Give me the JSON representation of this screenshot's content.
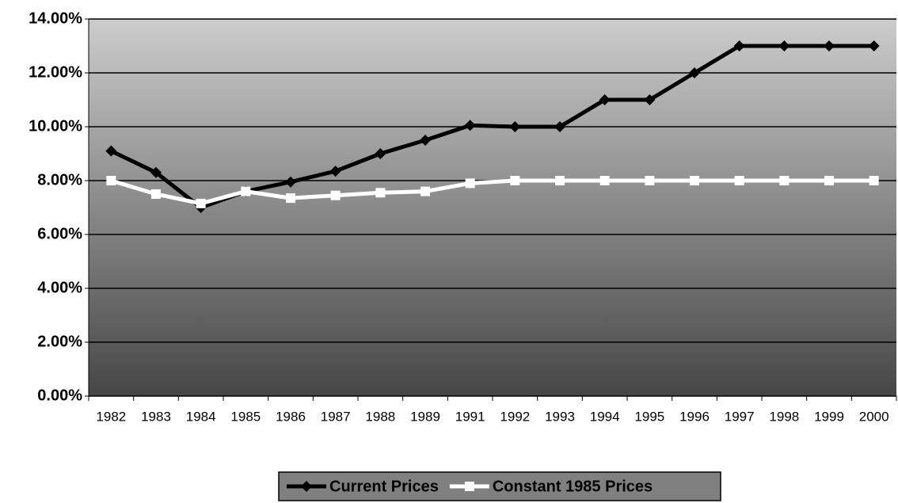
{
  "chart_data": {
    "type": "line",
    "categories": [
      "1982",
      "1983",
      "1984",
      "1985",
      "1986",
      "1987",
      "1988",
      "1989",
      "1991",
      "1992",
      "1993",
      "1994",
      "1995",
      "1996",
      "1997",
      "1998",
      "1999",
      "2000"
    ],
    "series": [
      {
        "name": "Current Prices",
        "color": "#000000",
        "marker": "diamond",
        "values": [
          9.1,
          8.3,
          7.0,
          7.6,
          7.95,
          8.35,
          9.0,
          9.5,
          10.05,
          10.0,
          10.0,
          11.0,
          11.0,
          12.0,
          13.0,
          13.0,
          13.0,
          13.0
        ]
      },
      {
        "name": "Constant 1985 Prices",
        "color": "#ffffff",
        "marker": "square",
        "values": [
          8.0,
          7.5,
          7.15,
          7.6,
          7.35,
          7.45,
          7.55,
          7.6,
          7.9,
          8.0,
          8.0,
          8.0,
          8.0,
          8.0,
          8.0,
          8.0,
          8.0,
          8.0
        ]
      }
    ],
    "ylim": [
      0,
      14
    ],
    "yticks": [
      {
        "value": 0,
        "label": "0.00%"
      },
      {
        "value": 2,
        "label": "2.00%"
      },
      {
        "value": 4,
        "label": "4.00%"
      },
      {
        "value": 6,
        "label": "6.00%"
      },
      {
        "value": 8,
        "label": "8.00%"
      },
      {
        "value": 10,
        "label": "10.00%"
      },
      {
        "value": 12,
        "label": "12.00%"
      },
      {
        "value": 14,
        "label": "14.00%"
      }
    ],
    "grid": true,
    "legend": "bottom"
  }
}
